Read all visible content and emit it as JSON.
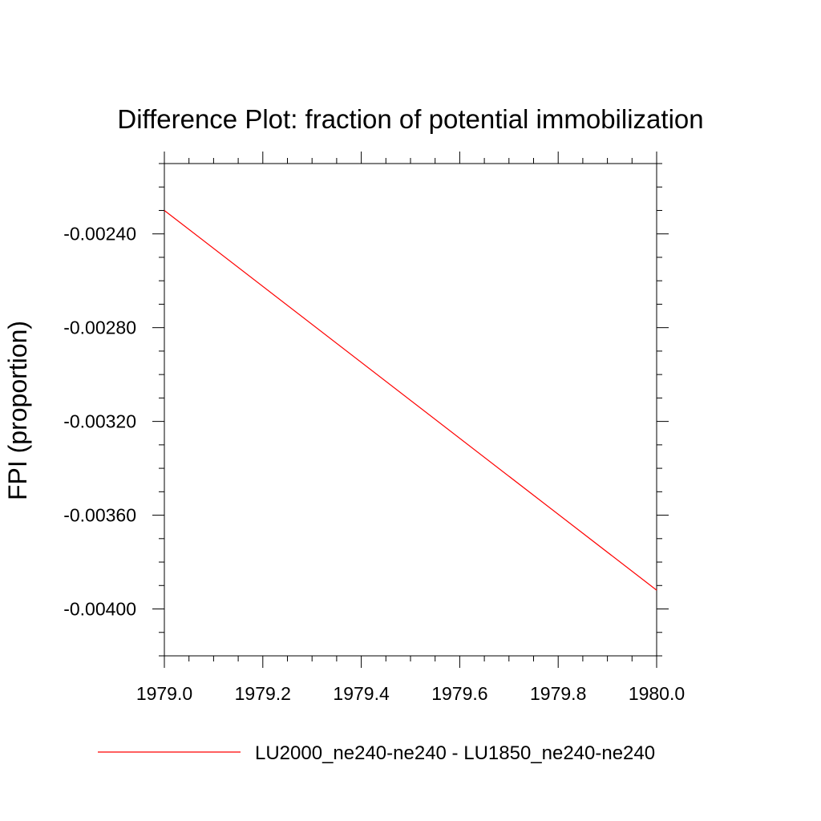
{
  "chart_data": {
    "type": "line",
    "title": "Difference Plot: fraction of potential immobilization",
    "ylabel": "FPI  (proportion)",
    "xlabel": "",
    "xlim": [
      1979.0,
      1980.0
    ],
    "ylim": [
      -0.0042,
      -0.0021
    ],
    "x_ticks": [
      1979.0,
      1979.2,
      1979.4,
      1979.6,
      1979.8,
      1980.0
    ],
    "x_tick_labels": [
      "1979.0",
      "1979.2",
      "1979.4",
      "1979.6",
      "1979.8",
      "1980.0"
    ],
    "y_ticks": [
      -0.0024,
      -0.0028,
      -0.0032,
      -0.0036,
      -0.004
    ],
    "y_tick_labels": [
      "-0.00240",
      "-0.00280",
      "-0.00320",
      "-0.00360",
      "-0.00400"
    ],
    "grid": false,
    "legend_position": "bottom",
    "series": [
      {
        "name": "LU2000_ne240-ne240 - LU1850_ne240-ne240",
        "color": "#ff0000",
        "x": [
          1979.0,
          1980.0
        ],
        "y": [
          -0.0023,
          -0.00392
        ]
      }
    ]
  }
}
